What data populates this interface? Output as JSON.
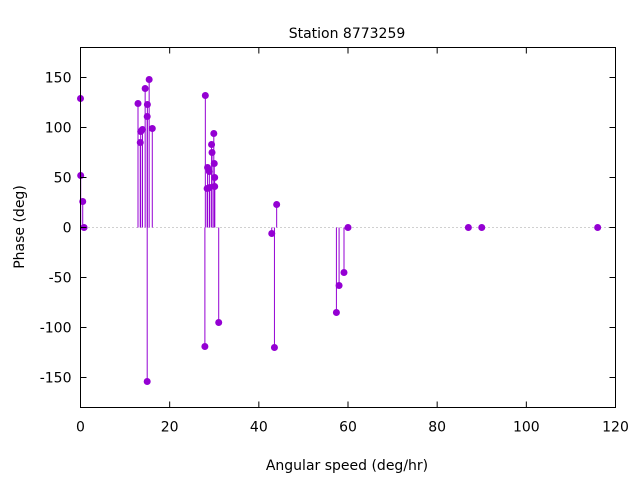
{
  "chart_data": {
    "type": "scatter",
    "style": "impulses-with-points",
    "title": "Station 8773259",
    "xlabel": "Angular speed (deg/hr)",
    "ylabel": "Phase (deg)",
    "xlim": [
      0,
      120
    ],
    "ylim": [
      -180,
      180
    ],
    "xticks": [
      0,
      20,
      40,
      60,
      80,
      100,
      120
    ],
    "yticks": [
      -150,
      -100,
      -50,
      0,
      50,
      100,
      150
    ],
    "zero_line": "dotted",
    "grid": false,
    "series_color": "#9400d3",
    "points": [
      {
        "x": 0.0,
        "y": 129
      },
      {
        "x": 0.04,
        "y": 52
      },
      {
        "x": 0.5,
        "y": 26
      },
      {
        "x": 0.8,
        "y": 0
      },
      {
        "x": 12.9,
        "y": 124
      },
      {
        "x": 13.4,
        "y": 85
      },
      {
        "x": 13.5,
        "y": 96
      },
      {
        "x": 13.9,
        "y": 98
      },
      {
        "x": 14.5,
        "y": 139
      },
      {
        "x": 14.96,
        "y": -154
      },
      {
        "x": 14.96,
        "y": 111
      },
      {
        "x": 15.0,
        "y": 123
      },
      {
        "x": 15.4,
        "y": 148
      },
      {
        "x": 16.1,
        "y": 99
      },
      {
        "x": 27.9,
        "y": -119
      },
      {
        "x": 28.0,
        "y": 132
      },
      {
        "x": 28.4,
        "y": 39
      },
      {
        "x": 28.5,
        "y": 60
      },
      {
        "x": 28.9,
        "y": 56
      },
      {
        "x": 29.0,
        "y": 40
      },
      {
        "x": 29.4,
        "y": 83
      },
      {
        "x": 29.5,
        "y": 75
      },
      {
        "x": 29.9,
        "y": 94
      },
      {
        "x": 30.0,
        "y": 64
      },
      {
        "x": 30.1,
        "y": 50
      },
      {
        "x": 30.1,
        "y": 41
      },
      {
        "x": 31.0,
        "y": -95
      },
      {
        "x": 42.9,
        "y": -6
      },
      {
        "x": 43.5,
        "y": -120
      },
      {
        "x": 44.0,
        "y": 23
      },
      {
        "x": 57.4,
        "y": -85
      },
      {
        "x": 58.0,
        "y": -58
      },
      {
        "x": 59.1,
        "y": -45
      },
      {
        "x": 60.0,
        "y": 0
      },
      {
        "x": 87.0,
        "y": 0
      },
      {
        "x": 90.0,
        "y": 0
      },
      {
        "x": 116.0,
        "y": 0
      }
    ]
  }
}
